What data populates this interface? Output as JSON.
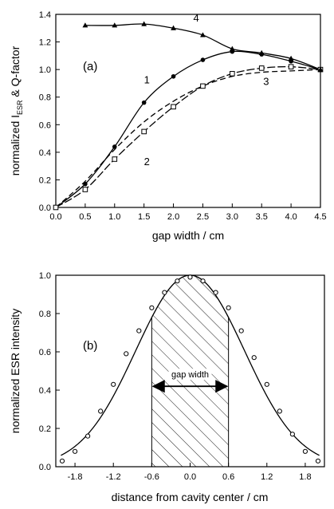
{
  "chart_data": [
    {
      "type": "line",
      "panel_label": "(a)",
      "xlabel": "gap width / cm",
      "ylabel_main": "normalized I",
      "ylabel_sub": "ESR",
      "ylabel_tail": " & Q-factor",
      "xlim": [
        0,
        4.5
      ],
      "ylim": [
        0,
        1.4
      ],
      "xticks": [
        "0.0",
        "0.5",
        "1.0",
        "1.5",
        "2.0",
        "2.5",
        "3.0",
        "3.5",
        "4.0",
        "4.5"
      ],
      "yticks": [
        "0.0",
        "0.2",
        "0.4",
        "0.6",
        "0.8",
        "1.0",
        "1.2",
        "1.4"
      ],
      "series": [
        {
          "name": "1",
          "marker": "filled-circle",
          "dash": "solid",
          "points": [
            [
              0,
              0
            ],
            [
              0.5,
              0.17
            ],
            [
              1.0,
              0.44
            ],
            [
              1.5,
              0.76
            ],
            [
              2.0,
              0.95
            ],
            [
              2.5,
              1.07
            ],
            [
              3.0,
              1.13
            ],
            [
              3.5,
              1.11
            ],
            [
              4.0,
              1.06
            ],
            [
              4.5,
              1.0
            ]
          ]
        },
        {
          "name": "2",
          "marker": "open-square",
          "dash": "solid",
          "points": [
            [
              0,
              0
            ],
            [
              0.5,
              0.13
            ],
            [
              1.0,
              0.35
            ],
            [
              1.5,
              0.55
            ],
            [
              2.0,
              0.73
            ],
            [
              2.5,
              0.88
            ],
            [
              3.0,
              0.97
            ],
            [
              3.5,
              1.01
            ],
            [
              4.0,
              1.02
            ],
            [
              4.5,
              1.0
            ]
          ]
        },
        {
          "name": "3",
          "marker": "none",
          "dash": "dashed",
          "points": [
            [
              0,
              0
            ],
            [
              0.5,
              0.19
            ],
            [
              1.0,
              0.42
            ],
            [
              1.5,
              0.62
            ],
            [
              2.0,
              0.77
            ],
            [
              2.5,
              0.88
            ],
            [
              3.0,
              0.95
            ],
            [
              3.5,
              0.98
            ],
            [
              4.0,
              0.99
            ],
            [
              4.5,
              1.0
            ]
          ]
        },
        {
          "name": "4",
          "marker": "filled-triangle",
          "dash": "solid",
          "points": [
            [
              0.5,
              1.32
            ],
            [
              1.0,
              1.32
            ],
            [
              1.5,
              1.33
            ],
            [
              2.0,
              1.3
            ],
            [
              2.5,
              1.25
            ],
            [
              3.0,
              1.15
            ],
            [
              3.5,
              1.12
            ],
            [
              4.0,
              1.08
            ],
            [
              4.5,
              1.0
            ]
          ]
        }
      ]
    },
    {
      "type": "line",
      "panel_label": "(b)",
      "xlabel": "distance from cavity center / cm",
      "ylabel": "normalized ESR intensity",
      "xlim": [
        -2.1,
        2.1
      ],
      "ylim": [
        0,
        1.0
      ],
      "xticks": [
        "-1.8",
        "-1.2",
        "-0.6",
        "0.0",
        "0.6",
        "1.2",
        "1.8"
      ],
      "yticks": [
        "0.0",
        "0.2",
        "0.4",
        "0.6",
        "0.8",
        "1.0"
      ],
      "sigma": 0.85,
      "shaded_region": [
        -0.6,
        0.6
      ],
      "annotation": "gap width",
      "series": [
        {
          "marker": "open-circle",
          "x": [
            -2.0,
            -1.8,
            -1.6,
            -1.4,
            -1.2,
            -1.0,
            -0.8,
            -0.6,
            -0.4,
            -0.2,
            0.0,
            0.2,
            0.4,
            0.6,
            0.8,
            1.0,
            1.2,
            1.4,
            1.6,
            1.8,
            2.0
          ],
          "y": [
            0.03,
            0.08,
            0.16,
            0.29,
            0.43,
            0.59,
            0.71,
            0.83,
            0.91,
            0.97,
            0.99,
            0.97,
            0.91,
            0.83,
            0.71,
            0.57,
            0.43,
            0.29,
            0.17,
            0.08,
            0.03
          ]
        }
      ]
    }
  ]
}
